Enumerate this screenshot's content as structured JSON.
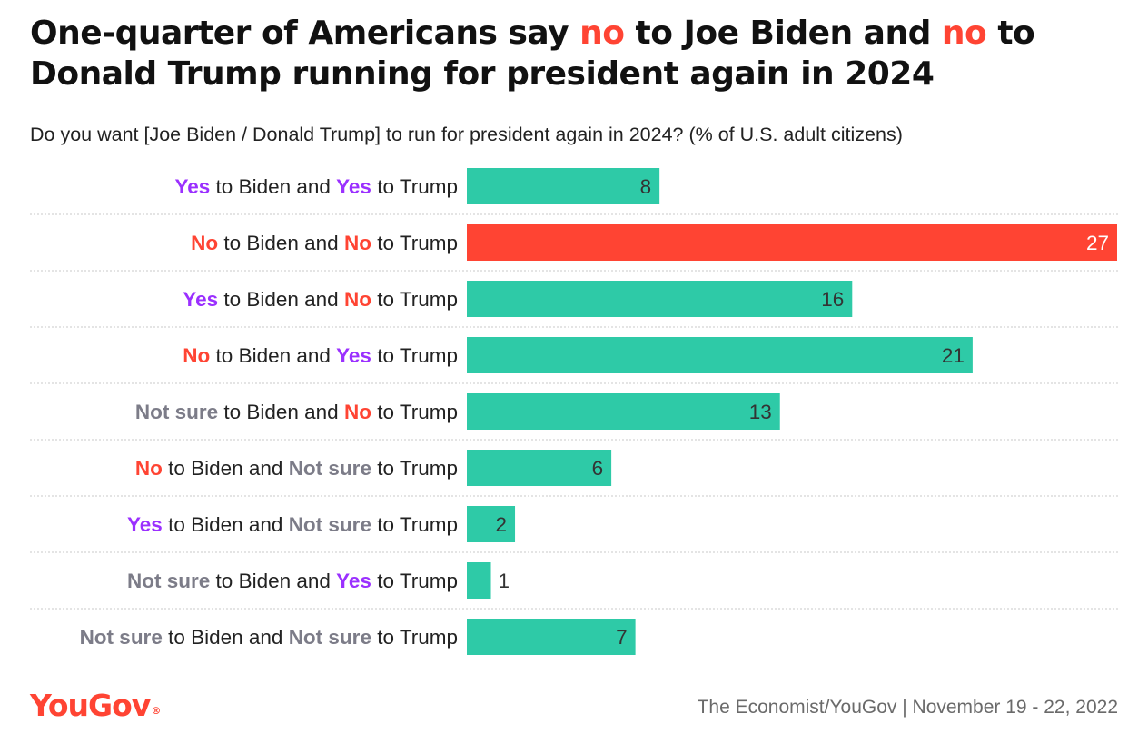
{
  "title": {
    "part1": "One-quarter of Americans say ",
    "no1": "no",
    "part2": " to Joe Biden and ",
    "no2": "no",
    "part3": " to Donald Trump running for president again in 2024"
  },
  "subtitle": "Do you want [Joe Biden / Donald Trump] to run for president again in 2024? (% of U.S. adult citizens)",
  "colors": {
    "bar_default": "#2ecaa7",
    "bar_highlight": "#ff4433",
    "yes": "#9b30ff",
    "no": "#ff4433",
    "not_sure": "#7c7c88",
    "label_text": "#222222",
    "value_dark": "#333333",
    "value_light": "#ffffff",
    "divider": "#c8c8c8"
  },
  "chart_data": {
    "type": "bar",
    "orientation": "horizontal",
    "title": "Do you want [Joe Biden / Donald Trump] to run for president again in 2024?",
    "unit": "% of U.S. adult citizens",
    "xlim": [
      0,
      27
    ],
    "categories": [
      "Yes to Biden and Yes to Trump",
      "No to Biden and No to Trump",
      "Yes to Biden and No to Trump",
      "No to Biden and Yes to Trump",
      "Not sure to Biden and No to Trump",
      "No to Biden and Not sure to Trump",
      "Yes to Biden and Not sure to Trump",
      "Not sure to Biden and Yes to Trump",
      "Not sure to Biden and Not sure to Trump"
    ],
    "values": [
      8,
      27,
      16,
      21,
      13,
      6,
      2,
      1,
      7
    ],
    "highlight_index": 1,
    "rows": [
      {
        "biden": "Yes",
        "biden_kind": "yes",
        "trump": "Yes",
        "trump_kind": "yes",
        "value": 8
      },
      {
        "biden": "No",
        "biden_kind": "no",
        "trump": "No",
        "trump_kind": "no",
        "value": 27
      },
      {
        "biden": "Yes",
        "biden_kind": "yes",
        "trump": "No",
        "trump_kind": "no",
        "value": 16
      },
      {
        "biden": "No",
        "biden_kind": "no",
        "trump": "Yes",
        "trump_kind": "yes",
        "value": 21
      },
      {
        "biden": "Not sure",
        "biden_kind": "not_sure",
        "trump": "No",
        "trump_kind": "no",
        "value": 13
      },
      {
        "biden": "No",
        "biden_kind": "no",
        "trump": "Not sure",
        "trump_kind": "not_sure",
        "value": 6
      },
      {
        "biden": "Yes",
        "biden_kind": "yes",
        "trump": "Not sure",
        "trump_kind": "not_sure",
        "value": 2
      },
      {
        "biden": "Not sure",
        "biden_kind": "not_sure",
        "trump": "Yes",
        "trump_kind": "yes",
        "value": 1
      },
      {
        "biden": "Not sure",
        "biden_kind": "not_sure",
        "trump": "Not sure",
        "trump_kind": "not_sure",
        "value": 7
      }
    ],
    "label_joiners": {
      "mid": " to Biden and ",
      "end": " to Trump"
    }
  },
  "footer": {
    "logo": "YouGov",
    "logo_mark": "®",
    "source": "The Economist/YouGov | November 19 - 22, 2022"
  }
}
